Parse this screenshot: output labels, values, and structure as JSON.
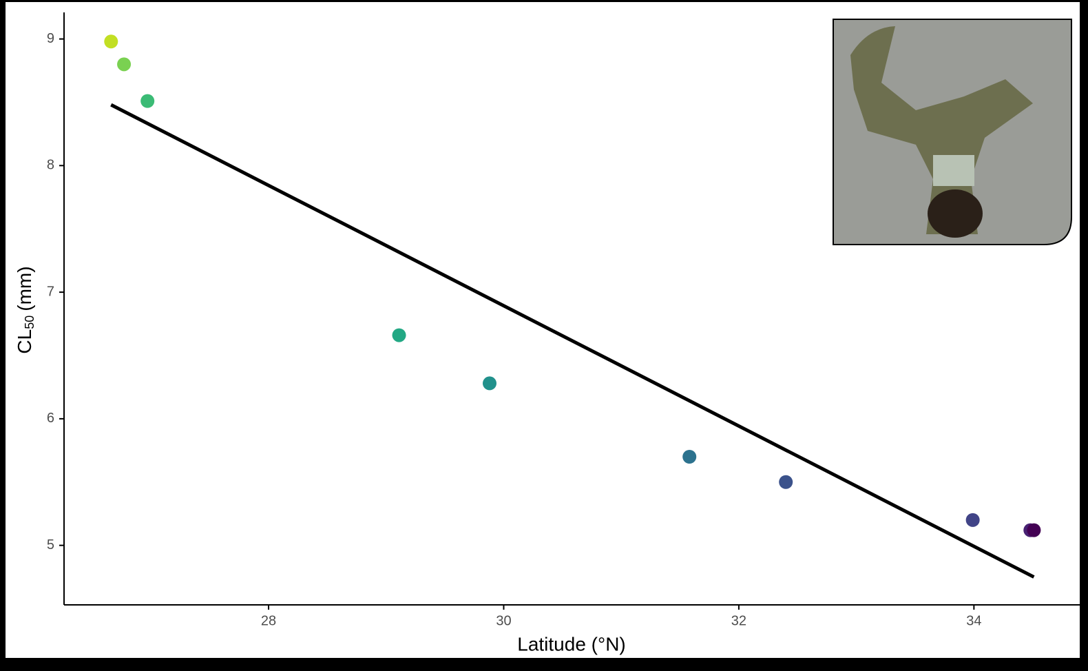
{
  "chart_data": {
    "type": "scatter",
    "x_label": "Latitude (°N)",
    "y_label": [
      "CL",
      "50",
      "(mm)"
    ],
    "x": [
      26.66,
      26.77,
      26.97,
      29.11,
      29.88,
      31.58,
      32.4,
      33.99,
      34.48,
      34.51
    ],
    "values": [
      8.98,
      8.8,
      8.51,
      6.66,
      6.28,
      5.7,
      5.5,
      5.2,
      5.12,
      5.12
    ],
    "colors": [
      "#c2df23",
      "#7ad151",
      "#3bbb75",
      "#22a884",
      "#21918c",
      "#2c728e",
      "#3b528b",
      "#414487",
      "#482173",
      "#440154"
    ],
    "fit_line": {
      "x": [
        26.66,
        34.51
      ],
      "values": [
        8.48,
        4.75
      ],
      "color": "#000000"
    },
    "xlim": [
      26.26,
      34.9
    ],
    "ylim": [
      4.53,
      9.21
    ],
    "xticks": [
      28,
      30,
      32,
      34
    ],
    "yticks": [
      5,
      6,
      7,
      8,
      9
    ],
    "grid": false
  }
}
